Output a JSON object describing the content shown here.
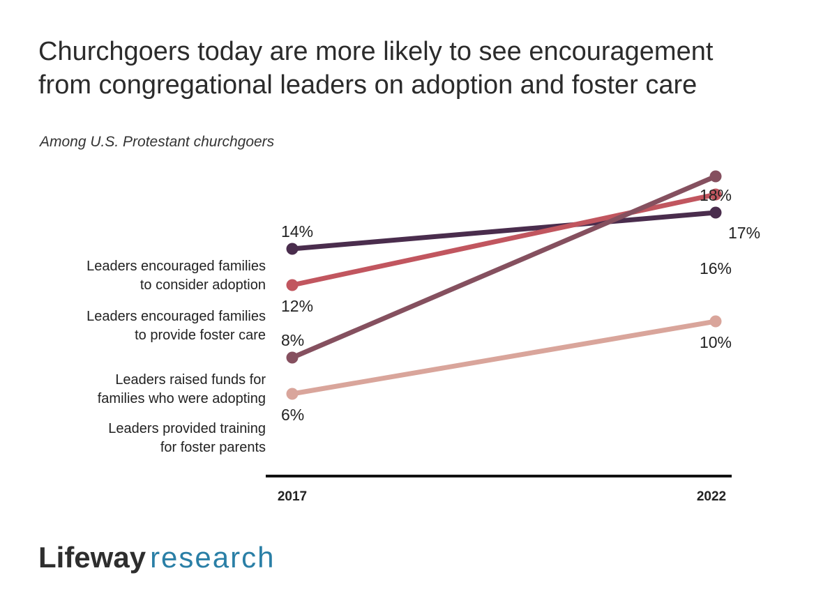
{
  "title_line1": "Churchgoers today are more likely to see encouragement",
  "title_line2": "from congregational leaders on adoption and foster care",
  "subtitle": "Among U.S. Protestant churchgoers",
  "logo": {
    "brand": "Lifeway",
    "word": "research"
  },
  "chart_data": {
    "type": "line",
    "x": [
      "2017",
      "2022"
    ],
    "series": [
      {
        "name": "Leaders encouraged families to consider adoption",
        "label_lines": [
          "Leaders encouraged families",
          "to consider adoption"
        ],
        "values": [
          14,
          16
        ],
        "value_labels": [
          "14%",
          "16%"
        ],
        "color": "#4a2d4d"
      },
      {
        "name": "Leaders encouraged families to provide foster care",
        "label_lines": [
          "Leaders encouraged families",
          "to provide foster care"
        ],
        "values": [
          12,
          17
        ],
        "value_labels": [
          "12%",
          "17%"
        ],
        "color": "#c1565f"
      },
      {
        "name": "Leaders raised funds for families who were adopting",
        "label_lines": [
          "Leaders raised funds for",
          "families who were adopting"
        ],
        "values": [
          8,
          18
        ],
        "value_labels": [
          "8%",
          "18%"
        ],
        "color": "#85505f"
      },
      {
        "name": "Leaders provided training for foster parents",
        "label_lines": [
          "Leaders provided training",
          "for foster parents"
        ],
        "values": [
          6,
          10
        ],
        "value_labels": [
          "6%",
          "10%"
        ],
        "color": "#d9a59b"
      }
    ],
    "ylim": [
      4,
      20
    ],
    "grid": false,
    "legend": "left-of-lines"
  }
}
